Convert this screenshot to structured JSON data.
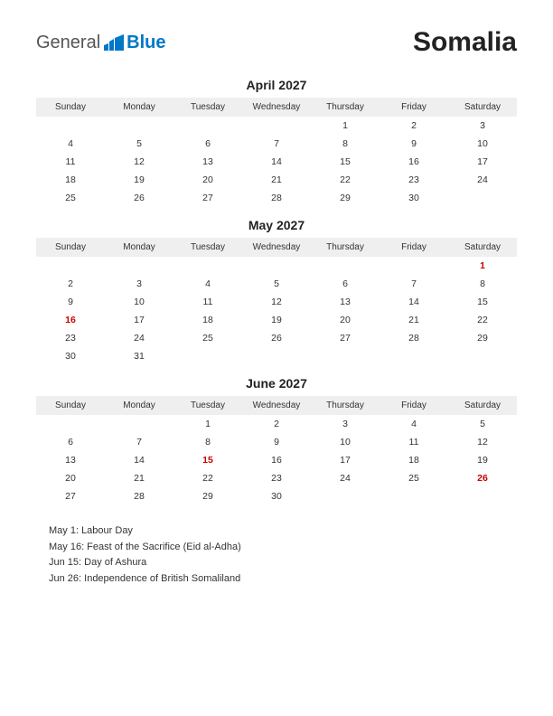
{
  "logo": {
    "general": "General",
    "blue": "Blue"
  },
  "country": "Somalia",
  "colors": {
    "holiday": "#cc0000",
    "header_bg": "#efefef",
    "text": "#333333",
    "logo_blue": "#0077c8",
    "background": "#ffffff"
  },
  "day_headers": [
    "Sunday",
    "Monday",
    "Tuesday",
    "Wednesday",
    "Thursday",
    "Friday",
    "Saturday"
  ],
  "months": [
    {
      "title": "April 2027",
      "weeks": [
        [
          {
            "d": ""
          },
          {
            "d": ""
          },
          {
            "d": ""
          },
          {
            "d": ""
          },
          {
            "d": "1"
          },
          {
            "d": "2"
          },
          {
            "d": "3"
          }
        ],
        [
          {
            "d": "4"
          },
          {
            "d": "5"
          },
          {
            "d": "6"
          },
          {
            "d": "7"
          },
          {
            "d": "8"
          },
          {
            "d": "9"
          },
          {
            "d": "10"
          }
        ],
        [
          {
            "d": "11"
          },
          {
            "d": "12"
          },
          {
            "d": "13"
          },
          {
            "d": "14"
          },
          {
            "d": "15"
          },
          {
            "d": "16"
          },
          {
            "d": "17"
          }
        ],
        [
          {
            "d": "18"
          },
          {
            "d": "19"
          },
          {
            "d": "20"
          },
          {
            "d": "21"
          },
          {
            "d": "22"
          },
          {
            "d": "23"
          },
          {
            "d": "24"
          }
        ],
        [
          {
            "d": "25"
          },
          {
            "d": "26"
          },
          {
            "d": "27"
          },
          {
            "d": "28"
          },
          {
            "d": "29"
          },
          {
            "d": "30"
          },
          {
            "d": ""
          }
        ]
      ]
    },
    {
      "title": "May 2027",
      "weeks": [
        [
          {
            "d": ""
          },
          {
            "d": ""
          },
          {
            "d": ""
          },
          {
            "d": ""
          },
          {
            "d": ""
          },
          {
            "d": ""
          },
          {
            "d": "1",
            "hol": true
          }
        ],
        [
          {
            "d": "2"
          },
          {
            "d": "3"
          },
          {
            "d": "4"
          },
          {
            "d": "5"
          },
          {
            "d": "6"
          },
          {
            "d": "7"
          },
          {
            "d": "8"
          }
        ],
        [
          {
            "d": "9"
          },
          {
            "d": "10"
          },
          {
            "d": "11"
          },
          {
            "d": "12"
          },
          {
            "d": "13"
          },
          {
            "d": "14"
          },
          {
            "d": "15"
          }
        ],
        [
          {
            "d": "16",
            "hol": true
          },
          {
            "d": "17"
          },
          {
            "d": "18"
          },
          {
            "d": "19"
          },
          {
            "d": "20"
          },
          {
            "d": "21"
          },
          {
            "d": "22"
          }
        ],
        [
          {
            "d": "23"
          },
          {
            "d": "24"
          },
          {
            "d": "25"
          },
          {
            "d": "26"
          },
          {
            "d": "27"
          },
          {
            "d": "28"
          },
          {
            "d": "29"
          }
        ],
        [
          {
            "d": "30"
          },
          {
            "d": "31"
          },
          {
            "d": ""
          },
          {
            "d": ""
          },
          {
            "d": ""
          },
          {
            "d": ""
          },
          {
            "d": ""
          }
        ]
      ]
    },
    {
      "title": "June 2027",
      "weeks": [
        [
          {
            "d": ""
          },
          {
            "d": ""
          },
          {
            "d": "1"
          },
          {
            "d": "2"
          },
          {
            "d": "3"
          },
          {
            "d": "4"
          },
          {
            "d": "5"
          }
        ],
        [
          {
            "d": "6"
          },
          {
            "d": "7"
          },
          {
            "d": "8"
          },
          {
            "d": "9"
          },
          {
            "d": "10"
          },
          {
            "d": "11"
          },
          {
            "d": "12"
          }
        ],
        [
          {
            "d": "13"
          },
          {
            "d": "14"
          },
          {
            "d": "15",
            "hol": true
          },
          {
            "d": "16"
          },
          {
            "d": "17"
          },
          {
            "d": "18"
          },
          {
            "d": "19"
          }
        ],
        [
          {
            "d": "20"
          },
          {
            "d": "21"
          },
          {
            "d": "22"
          },
          {
            "d": "23"
          },
          {
            "d": "24"
          },
          {
            "d": "25"
          },
          {
            "d": "26",
            "hol": true
          }
        ],
        [
          {
            "d": "27"
          },
          {
            "d": "28"
          },
          {
            "d": "29"
          },
          {
            "d": "30"
          },
          {
            "d": ""
          },
          {
            "d": ""
          },
          {
            "d": ""
          }
        ]
      ]
    }
  ],
  "holiday_list": [
    "May 1: Labour Day",
    "May 16: Feast of the Sacrifice (Eid al-Adha)",
    "Jun 15: Day of Ashura",
    "Jun 26: Independence of British Somaliland"
  ]
}
